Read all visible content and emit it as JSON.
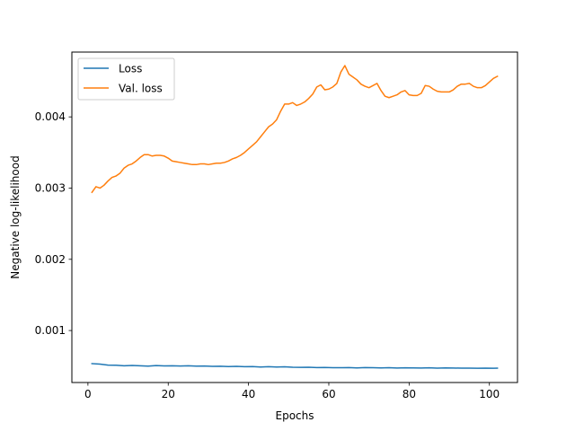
{
  "chart_data": {
    "type": "line",
    "title": "",
    "xlabel": "Epochs",
    "ylabel": "Negative log-likelihood",
    "xlim": [
      -4,
      107
    ],
    "ylim": [
      0.00027,
      0.00491
    ],
    "xticks": [
      0,
      20,
      40,
      60,
      80,
      100
    ],
    "yticks": [
      0.001,
      0.002,
      0.003,
      0.004
    ],
    "xtick_labels": [
      "0",
      "20",
      "40",
      "60",
      "80",
      "100"
    ],
    "ytick_labels": [
      "0.001",
      "0.002",
      "0.003",
      "0.004"
    ],
    "grid": false,
    "legend_position": "upper-left",
    "series": [
      {
        "name": "Loss",
        "color": "#1f77b4",
        "points": [
          [
            1,
            0.000535
          ],
          [
            3,
            0.000528
          ],
          [
            5,
            0.000515
          ],
          [
            7,
            0.000512
          ],
          [
            9,
            0.000505
          ],
          [
            11,
            0.00051
          ],
          [
            13,
            0.000505
          ],
          [
            15,
            0.0005
          ],
          [
            17,
            0.000508
          ],
          [
            19,
            0.000503
          ],
          [
            21,
            0.000505
          ],
          [
            23,
            0.000502
          ],
          [
            25,
            0.000505
          ],
          [
            27,
            0.0005
          ],
          [
            29,
            0.000502
          ],
          [
            31,
            0.000497
          ],
          [
            33,
            0.000498
          ],
          [
            35,
            0.000493
          ],
          [
            37,
            0.000497
          ],
          [
            39,
            0.000492
          ],
          [
            41,
            0.000493
          ],
          [
            43,
            0.000488
          ],
          [
            45,
            0.000492
          ],
          [
            47,
            0.000487
          ],
          [
            49,
            0.00049
          ],
          [
            51,
            0.000485
          ],
          [
            53,
            0.000483
          ],
          [
            55,
            0.000485
          ],
          [
            57,
            0.00048
          ],
          [
            59,
            0.000482
          ],
          [
            61,
            0.000478
          ],
          [
            63,
            0.000478
          ],
          [
            65,
            0.00048
          ],
          [
            67,
            0.000475
          ],
          [
            69,
            0.00048
          ],
          [
            71,
            0.000478
          ],
          [
            73,
            0.000475
          ],
          [
            75,
            0.000478
          ],
          [
            77,
            0.000473
          ],
          [
            79,
            0.000477
          ],
          [
            81,
            0.000475
          ],
          [
            83,
            0.000473
          ],
          [
            85,
            0.000477
          ],
          [
            87,
            0.000472
          ],
          [
            89,
            0.000475
          ],
          [
            91,
            0.000473
          ],
          [
            93,
            0.000472
          ],
          [
            95,
            0.000472
          ],
          [
            97,
            0.00047
          ],
          [
            99,
            0.000472
          ],
          [
            101,
            0.00047
          ],
          [
            102,
            0.000472
          ]
        ]
      },
      {
        "name": "Val. loss",
        "color": "#ff7f0e",
        "points": [
          [
            1,
            0.00294
          ],
          [
            2,
            0.00302
          ],
          [
            3,
            0.003
          ],
          [
            4,
            0.00304
          ],
          [
            5,
            0.0031
          ],
          [
            6,
            0.00315
          ],
          [
            7,
            0.00317
          ],
          [
            8,
            0.00321
          ],
          [
            9,
            0.00328
          ],
          [
            10,
            0.00332
          ],
          [
            11,
            0.00334
          ],
          [
            12,
            0.00338
          ],
          [
            13,
            0.00343
          ],
          [
            14,
            0.00347
          ],
          [
            15,
            0.00347
          ],
          [
            16,
            0.00345
          ],
          [
            17,
            0.00346
          ],
          [
            18,
            0.00346
          ],
          [
            19,
            0.00345
          ],
          [
            20,
            0.00342
          ],
          [
            21,
            0.00338
          ],
          [
            22,
            0.00337
          ],
          [
            23,
            0.00336
          ],
          [
            24,
            0.00335
          ],
          [
            25,
            0.00334
          ],
          [
            26,
            0.00333
          ],
          [
            27,
            0.00333
          ],
          [
            28,
            0.00334
          ],
          [
            29,
            0.00334
          ],
          [
            30,
            0.00333
          ],
          [
            31,
            0.00334
          ],
          [
            32,
            0.00335
          ],
          [
            33,
            0.00335
          ],
          [
            34,
            0.00336
          ],
          [
            35,
            0.00338
          ],
          [
            36,
            0.00341
          ],
          [
            37,
            0.00343
          ],
          [
            38,
            0.00346
          ],
          [
            39,
            0.0035
          ],
          [
            40,
            0.00355
          ],
          [
            41,
            0.0036
          ],
          [
            42,
            0.00365
          ],
          [
            43,
            0.00372
          ],
          [
            44,
            0.00379
          ],
          [
            45,
            0.00386
          ],
          [
            46,
            0.0039
          ],
          [
            47,
            0.00396
          ],
          [
            48,
            0.00408
          ],
          [
            49,
            0.00418
          ],
          [
            50,
            0.00418
          ],
          [
            51,
            0.0042
          ],
          [
            52,
            0.00416
          ],
          [
            53,
            0.00418
          ],
          [
            54,
            0.00421
          ],
          [
            55,
            0.00426
          ],
          [
            56,
            0.00432
          ],
          [
            57,
            0.00442
          ],
          [
            58,
            0.00445
          ],
          [
            59,
            0.00438
          ],
          [
            60,
            0.00439
          ],
          [
            61,
            0.00442
          ],
          [
            62,
            0.00447
          ],
          [
            63,
            0.00463
          ],
          [
            64,
            0.00472
          ],
          [
            65,
            0.0046
          ],
          [
            66,
            0.00456
          ],
          [
            67,
            0.00452
          ],
          [
            68,
            0.00446
          ],
          [
            69,
            0.00443
          ],
          [
            70,
            0.00441
          ],
          [
            71,
            0.00444
          ],
          [
            72,
            0.00447
          ],
          [
            73,
            0.00437
          ],
          [
            74,
            0.00429
          ],
          [
            75,
            0.00427
          ],
          [
            76,
            0.00429
          ],
          [
            77,
            0.00431
          ],
          [
            78,
            0.00435
          ],
          [
            79,
            0.00437
          ],
          [
            80,
            0.00431
          ],
          [
            81,
            0.0043
          ],
          [
            82,
            0.0043
          ],
          [
            83,
            0.00433
          ],
          [
            84,
            0.00444
          ],
          [
            85,
            0.00443
          ],
          [
            86,
            0.00439
          ],
          [
            87,
            0.00436
          ],
          [
            88,
            0.00435
          ],
          [
            89,
            0.00435
          ],
          [
            90,
            0.00435
          ],
          [
            91,
            0.00438
          ],
          [
            92,
            0.00443
          ],
          [
            93,
            0.00446
          ],
          [
            94,
            0.00446
          ],
          [
            95,
            0.00447
          ],
          [
            96,
            0.00443
          ],
          [
            97,
            0.00441
          ],
          [
            98,
            0.00441
          ],
          [
            99,
            0.00444
          ],
          [
            100,
            0.00449
          ],
          [
            101,
            0.00454
          ],
          [
            102,
            0.00457
          ]
        ]
      }
    ]
  }
}
